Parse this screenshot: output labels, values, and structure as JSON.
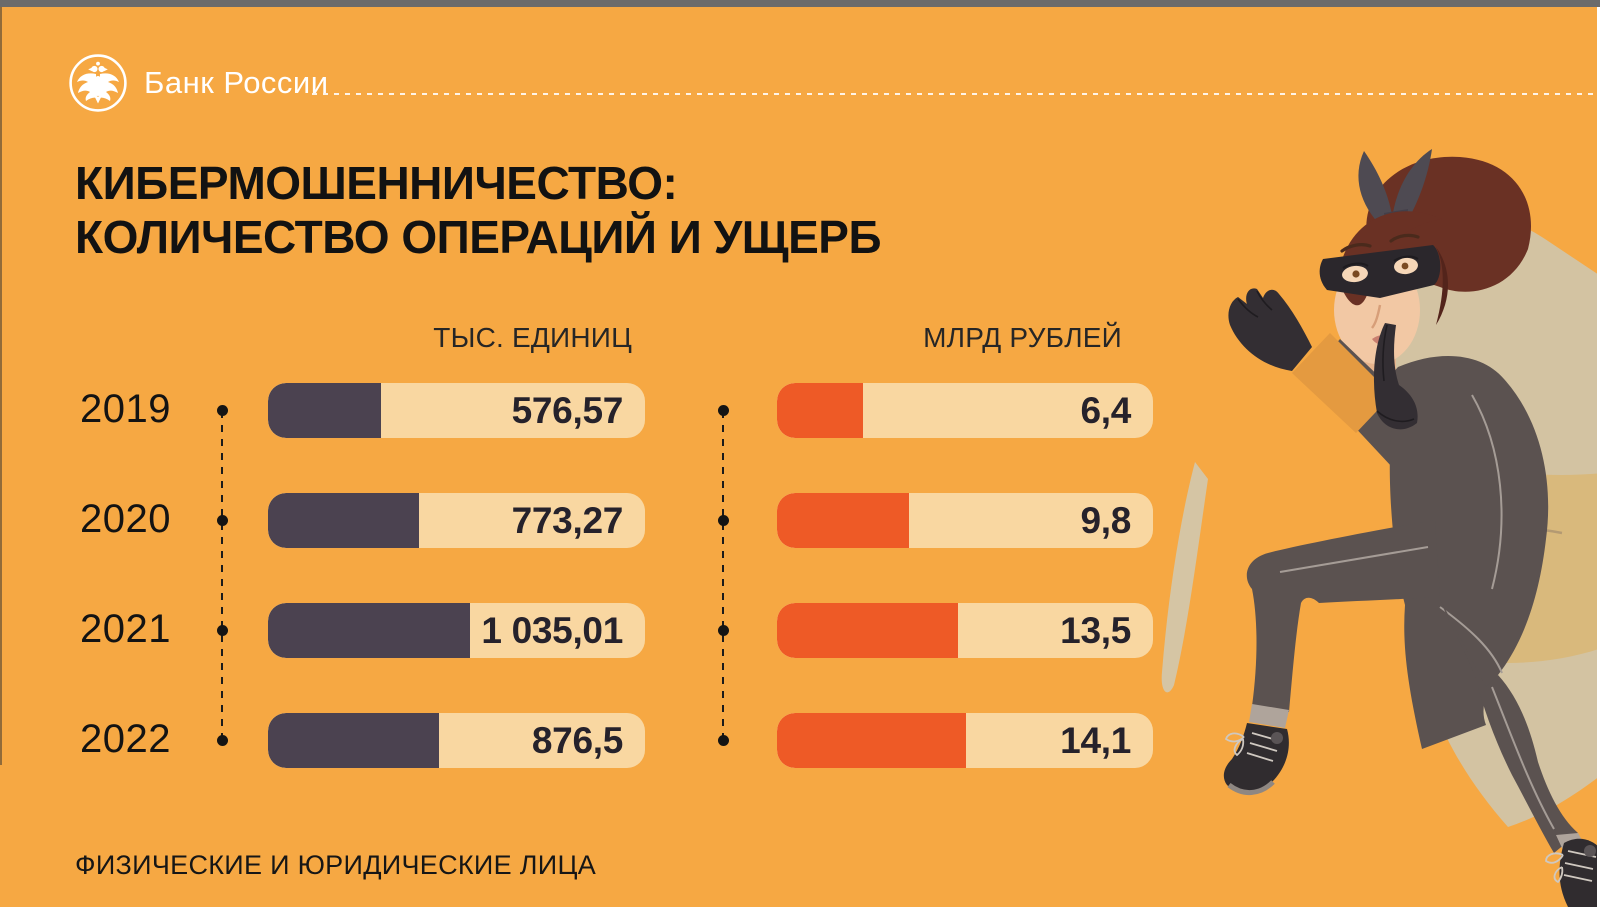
{
  "brand": {
    "name": "Банк России"
  },
  "title": {
    "line1": "КИБЕРМОШЕННИЧЕСТВО:",
    "line2": "КОЛИЧЕСТВО ОПЕРАЦИЙ И УЩЕРБ"
  },
  "footer": "ФИЗИЧЕСКИЕ И ЮРИДИЧЕСКИЕ ЛИЦА",
  "colors": {
    "background": "#F6A843",
    "bar_track": "#F9D7A1",
    "bar_dark": "#4B4250",
    "bar_orange": "#EE5A26",
    "text": "#161616",
    "logo": "#FFFFFF",
    "window_strip": "#6B6B6B"
  },
  "illustration": {
    "name": "burglar-woman-with-money-sack"
  },
  "chart_data": {
    "type": "bar",
    "orientation": "horizontal",
    "title": "КИБЕРМОШЕННИЧЕСТВО: КОЛИЧЕСТВО ОПЕРАЦИЙ И УЩЕРБ",
    "footnote": "ФИЗИЧЕСКИЕ И ЮРИДИЧЕСКИЕ ЛИЦА",
    "categories": [
      "2019",
      "2020",
      "2021",
      "2022"
    ],
    "series": [
      {
        "name": "ТЫС. ЕДИНИЦ",
        "values": [
          576.57,
          773.27,
          1035.01,
          876.5
        ],
        "value_labels": [
          "576,57",
          "773,27",
          "1 035,01",
          "876,5"
        ],
        "fill_color": "#4B4250",
        "axis_max": 1930
      },
      {
        "name": "МЛРД РУБЛЕЙ",
        "values": [
          6.4,
          9.8,
          13.5,
          14.1
        ],
        "value_labels": [
          "6,4",
          "9,8",
          "13,5",
          "14,1"
        ],
        "fill_color": "#EE5A26",
        "axis_max": 28
      }
    ],
    "grid": false,
    "legend_position": "none"
  }
}
